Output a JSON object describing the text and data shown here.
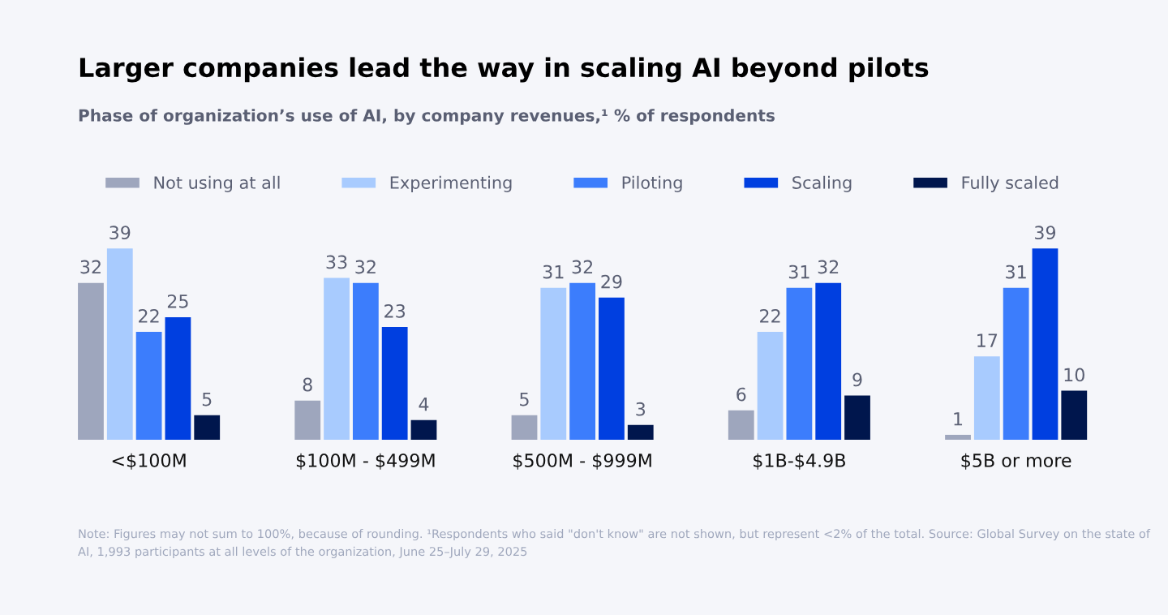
{
  "chart_data": {
    "type": "bar",
    "title": "Larger companies lead the way in scaling AI beyond pilots",
    "subtitle": "Phase of organization’s use of AI, by company revenues,¹ % of respondents",
    "categories": [
      "<$100M",
      "$100M - $499M",
      "$500M - $999M",
      "$1B-$4.9B",
      "$5B or more"
    ],
    "series": [
      {
        "name": "Not using at all",
        "color": "#9ea6bd",
        "values": [
          32,
          8,
          5,
          6,
          1
        ]
      },
      {
        "name": "Experimenting",
        "color": "#a8cbfe",
        "values": [
          39,
          33,
          31,
          22,
          17
        ]
      },
      {
        "name": "Piloting",
        "color": "#3c7dfc",
        "values": [
          22,
          32,
          32,
          31,
          31
        ]
      },
      {
        "name": "Scaling",
        "color": "#003fe0",
        "values": [
          25,
          23,
          29,
          32,
          39
        ]
      },
      {
        "name": "Fully scaled",
        "color": "#00164d",
        "values": [
          5,
          4,
          3,
          9,
          10
        ]
      }
    ],
    "data_labels": true,
    "legend": "top",
    "tick_labels": "x",
    "annotations": [
      "Note: Figures may not sum to 100%, because of rounding. ¹Respondents who said \"don't know\" are not shown, but represent <2% of the total. Source: Global Survey on the state of AI, 1,993 participants at all levels of the organization, June 25–July 29, 2025"
    ]
  }
}
